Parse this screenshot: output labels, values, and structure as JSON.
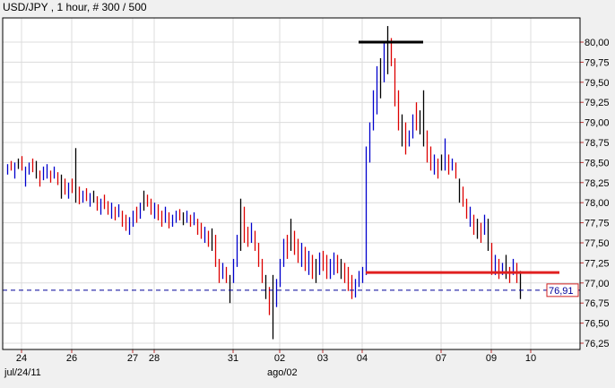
{
  "title": "USD/JPY , 1 hour, # 300 / 500",
  "chart_data": {
    "type": "bar",
    "subtype": "hlc-bars",
    "title": "USD/JPY , 1 hour, # 300 / 500",
    "ylim": [
      76.15,
      80.6
    ],
    "y_ticks": [
      "80,00",
      "79,75",
      "79,50",
      "79,25",
      "79,00",
      "78,75",
      "78,50",
      "78,25",
      "78,00",
      "77,75",
      "77,50",
      "77,25",
      "77,00",
      "76,75",
      "76,50",
      "76,25"
    ],
    "y_tick_values": [
      80.0,
      79.75,
      79.5,
      79.25,
      79.0,
      78.75,
      78.5,
      78.25,
      78.0,
      77.75,
      77.5,
      77.25,
      77.0,
      76.75,
      76.5,
      76.25
    ],
    "x_ticks": [
      {
        "label": "24",
        "bar": 4
      },
      {
        "label": "26",
        "bar": 18
      },
      {
        "label": "27",
        "bar": 35
      },
      {
        "label": "28",
        "bar": 41
      },
      {
        "label": "31",
        "bar": 63
      },
      {
        "label": "02",
        "bar": 76
      },
      {
        "label": "03",
        "bar": 88
      },
      {
        "label": "04",
        "bar": 99
      },
      {
        "label": "07",
        "bar": 121
      },
      {
        "label": "09",
        "bar": 135
      },
      {
        "label": "10",
        "bar": 146
      }
    ],
    "x_secondary": [
      {
        "label": "jul/24/11",
        "bar": 0
      },
      {
        "label": "ago/02",
        "bar": 76
      }
    ],
    "grid": true,
    "colors": {
      "up": "#0000cc",
      "down": "#dd0000",
      "neutral": "#000000",
      "current": "#000099",
      "support": "#e02020",
      "resistance": "#000000"
    },
    "current_price": {
      "value": 76.91,
      "label": "76,91"
    },
    "lines": [
      {
        "name": "resistance",
        "value": 80.0,
        "from_bar": 98,
        "to_bar": 116
      },
      {
        "name": "support",
        "value": 77.13,
        "from_bar": 100,
        "to_bar": 154
      }
    ],
    "bars": [
      [
        78.48,
        78.35,
        "u"
      ],
      [
        78.52,
        78.4,
        "d"
      ],
      [
        78.5,
        78.3,
        "u"
      ],
      [
        78.55,
        78.42,
        "n"
      ],
      [
        78.58,
        78.4,
        "d"
      ],
      [
        78.45,
        78.2,
        "u"
      ],
      [
        78.5,
        78.35,
        "u"
      ],
      [
        78.55,
        78.38,
        "d"
      ],
      [
        78.52,
        78.3,
        "n"
      ],
      [
        78.4,
        78.2,
        "d"
      ],
      [
        78.45,
        78.28,
        "u"
      ],
      [
        78.48,
        78.3,
        "u"
      ],
      [
        78.4,
        78.25,
        "d"
      ],
      [
        78.45,
        78.3,
        "u"
      ],
      [
        78.38,
        78.22,
        "d"
      ],
      [
        78.35,
        78.05,
        "n"
      ],
      [
        78.3,
        78.1,
        "d"
      ],
      [
        78.25,
        78.05,
        "u"
      ],
      [
        78.3,
        78.12,
        "d"
      ],
      [
        78.68,
        78.0,
        "n"
      ],
      [
        78.2,
        77.98,
        "d"
      ],
      [
        78.15,
        78.0,
        "u"
      ],
      [
        78.18,
        78.02,
        "d"
      ],
      [
        78.12,
        77.95,
        "u"
      ],
      [
        78.15,
        78.0,
        "n"
      ],
      [
        78.08,
        77.9,
        "d"
      ],
      [
        78.05,
        77.85,
        "u"
      ],
      [
        78.1,
        77.92,
        "d"
      ],
      [
        78.02,
        77.85,
        "d"
      ],
      [
        78.0,
        77.8,
        "u"
      ],
      [
        77.95,
        77.78,
        "d"
      ],
      [
        77.98,
        77.82,
        "u"
      ],
      [
        77.9,
        77.7,
        "d"
      ],
      [
        77.85,
        77.65,
        "d"
      ],
      [
        77.82,
        77.6,
        "u"
      ],
      [
        77.9,
        77.7,
        "u"
      ],
      [
        77.95,
        77.75,
        "d"
      ],
      [
        78.0,
        77.8,
        "u"
      ],
      [
        78.15,
        77.9,
        "n"
      ],
      [
        78.1,
        77.95,
        "d"
      ],
      [
        78.05,
        77.85,
        "d"
      ],
      [
        78.0,
        77.8,
        "u"
      ],
      [
        77.98,
        77.78,
        "d"
      ],
      [
        77.9,
        77.7,
        "d"
      ],
      [
        77.95,
        77.75,
        "u"
      ],
      [
        77.88,
        77.68,
        "d"
      ],
      [
        77.85,
        77.7,
        "u"
      ],
      [
        77.9,
        77.75,
        "u"
      ],
      [
        77.92,
        77.78,
        "d"
      ],
      [
        77.88,
        77.72,
        "n"
      ],
      [
        77.9,
        77.75,
        "u"
      ],
      [
        77.85,
        77.7,
        "d"
      ],
      [
        77.88,
        77.72,
        "u"
      ],
      [
        77.8,
        77.6,
        "d"
      ],
      [
        77.75,
        77.55,
        "d"
      ],
      [
        77.7,
        77.5,
        "u"
      ],
      [
        77.65,
        77.45,
        "d"
      ],
      [
        77.68,
        77.4,
        "n"
      ],
      [
        77.6,
        77.2,
        "d"
      ],
      [
        77.3,
        77.0,
        "d"
      ],
      [
        77.25,
        77.05,
        "u"
      ],
      [
        77.2,
        77.0,
        "d"
      ],
      [
        77.1,
        76.75,
        "n"
      ],
      [
        77.3,
        77.0,
        "u"
      ],
      [
        77.6,
        77.2,
        "u"
      ],
      [
        78.05,
        77.4,
        "n"
      ],
      [
        77.95,
        77.5,
        "d"
      ],
      [
        77.7,
        77.45,
        "d"
      ],
      [
        77.75,
        77.5,
        "u"
      ],
      [
        77.65,
        77.4,
        "d"
      ],
      [
        77.5,
        77.2,
        "d"
      ],
      [
        77.3,
        77.0,
        "d"
      ],
      [
        77.1,
        76.8,
        "n"
      ],
      [
        76.95,
        76.6,
        "d"
      ],
      [
        77.1,
        76.3,
        "n"
      ],
      [
        77.05,
        76.7,
        "u"
      ],
      [
        77.3,
        76.95,
        "u"
      ],
      [
        77.55,
        77.2,
        "u"
      ],
      [
        77.6,
        77.3,
        "d"
      ],
      [
        77.8,
        77.4,
        "n"
      ],
      [
        77.65,
        77.35,
        "d"
      ],
      [
        77.55,
        77.25,
        "d"
      ],
      [
        77.5,
        77.2,
        "u"
      ],
      [
        77.45,
        77.15,
        "d"
      ],
      [
        77.4,
        77.1,
        "u"
      ],
      [
        77.35,
        77.05,
        "d"
      ],
      [
        77.3,
        77.0,
        "n"
      ],
      [
        77.38,
        77.1,
        "u"
      ],
      [
        77.4,
        77.15,
        "d"
      ],
      [
        77.35,
        77.05,
        "d"
      ],
      [
        77.3,
        77.05,
        "u"
      ],
      [
        77.38,
        77.1,
        "u"
      ],
      [
        77.35,
        77.12,
        "d"
      ],
      [
        77.3,
        77.05,
        "n"
      ],
      [
        77.25,
        77.0,
        "d"
      ],
      [
        77.2,
        76.9,
        "d"
      ],
      [
        77.1,
        76.8,
        "d"
      ],
      [
        77.05,
        76.82,
        "u"
      ],
      [
        77.15,
        76.95,
        "u"
      ],
      [
        77.2,
        77.0,
        "u"
      ],
      [
        78.7,
        77.1,
        "u"
      ],
      [
        79.0,
        78.5,
        "u"
      ],
      [
        79.4,
        78.9,
        "u"
      ],
      [
        79.7,
        79.1,
        "u"
      ],
      [
        79.8,
        79.3,
        "n"
      ],
      [
        80.0,
        79.5,
        "u"
      ],
      [
        80.2,
        79.6,
        "n"
      ],
      [
        80.05,
        79.7,
        "d"
      ],
      [
        79.8,
        79.2,
        "d"
      ],
      [
        79.4,
        78.9,
        "d"
      ],
      [
        79.1,
        78.7,
        "n"
      ],
      [
        79.0,
        78.6,
        "d"
      ],
      [
        78.9,
        78.7,
        "u"
      ],
      [
        79.1,
        78.8,
        "u"
      ],
      [
        79.25,
        78.9,
        "d"
      ],
      [
        79.15,
        78.85,
        "n"
      ],
      [
        79.4,
        78.7,
        "n"
      ],
      [
        78.9,
        78.5,
        "d"
      ],
      [
        78.7,
        78.4,
        "d"
      ],
      [
        78.6,
        78.35,
        "u"
      ],
      [
        78.55,
        78.3,
        "d"
      ],
      [
        78.6,
        78.4,
        "n"
      ],
      [
        78.8,
        78.4,
        "u"
      ],
      [
        78.6,
        78.35,
        "d"
      ],
      [
        78.55,
        78.4,
        "u"
      ],
      [
        78.5,
        78.3,
        "d"
      ],
      [
        78.3,
        78.0,
        "n"
      ],
      [
        78.2,
        77.95,
        "d"
      ],
      [
        78.05,
        77.8,
        "d"
      ],
      [
        77.95,
        77.7,
        "u"
      ],
      [
        77.85,
        77.6,
        "d"
      ],
      [
        77.8,
        77.55,
        "n"
      ],
      [
        77.75,
        77.5,
        "d"
      ],
      [
        77.85,
        77.6,
        "u"
      ],
      [
        77.8,
        77.4,
        "n"
      ],
      [
        77.5,
        77.1,
        "d"
      ],
      [
        77.35,
        77.1,
        "u"
      ],
      [
        77.3,
        77.05,
        "d"
      ],
      [
        77.25,
        77.1,
        "u"
      ],
      [
        77.35,
        77.05,
        "n"
      ],
      [
        77.2,
        77.0,
        "d"
      ],
      [
        77.3,
        77.1,
        "u"
      ],
      [
        77.25,
        77.0,
        "d"
      ],
      [
        77.15,
        76.8,
        "n"
      ]
    ]
  }
}
